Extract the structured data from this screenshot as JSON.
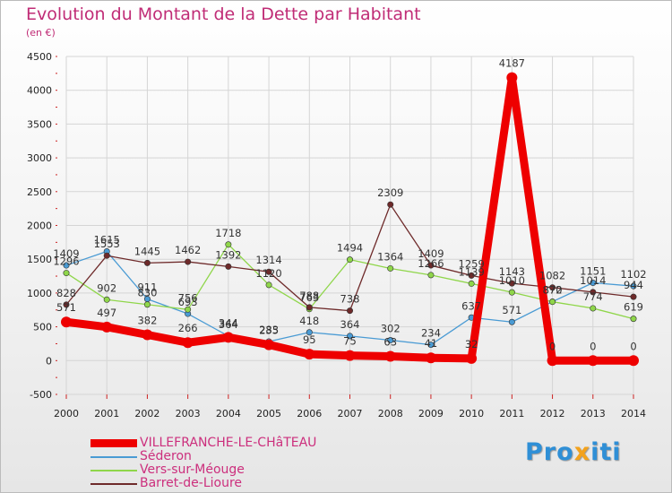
{
  "page": {
    "title": "Evolution du Montant de la Dette par Habitant",
    "unit_label": "(en €)",
    "logo_text": "Proxiti"
  },
  "colors": {
    "title": "#c02c76",
    "axis_text": "#222222",
    "grid": "#d5d5d5",
    "background_top": "#ffffff",
    "background_bottom": "#e6e6e6"
  },
  "chart_data": {
    "type": "line",
    "title": "Evolution du Montant de la Dette par Habitant",
    "subtitle": "(en €)",
    "xlabel": "",
    "ylabel": "",
    "x": [
      2000,
      2001,
      2002,
      2003,
      2004,
      2005,
      2006,
      2007,
      2008,
      2009,
      2010,
      2011,
      2012,
      2013,
      2014
    ],
    "ylim": [
      -500,
      4500
    ],
    "yticks": [
      -500,
      0,
      500,
      1000,
      1500,
      2000,
      2500,
      3000,
      3500,
      4000,
      4500
    ],
    "grid": true,
    "legend_position": "bottom-left",
    "series": [
      {
        "name": "VILLEFRANCHE-LE-CHâTEAU",
        "color": "#ee0000",
        "values": [
          571,
          497,
          382,
          266,
          344,
          235,
          95,
          75,
          63,
          41,
          32,
          4187,
          0,
          0,
          0
        ],
        "labels": [
          "571",
          "497",
          "382",
          "266",
          "344",
          "235",
          "95",
          "75",
          "63",
          "41",
          "32",
          "4187",
          "0",
          "0",
          "0"
        ]
      },
      {
        "name": "Séderon",
        "color": "#4a9bd4",
        "values": [
          1409,
          1615,
          911,
          693,
          364,
          283,
          418,
          364,
          302,
          234,
          637,
          571,
          872,
          1151,
          1102
        ],
        "labels": [
          "1409",
          "1615",
          "911",
          "693",
          "364",
          "283",
          "418",
          "364",
          "302",
          "234",
          "637",
          "571",
          "872",
          "1151",
          "1102"
        ]
      },
      {
        "name": "Vers-sur-Méouge",
        "color": "#8fd64a",
        "values": [
          1296,
          902,
          830,
          756,
          1718,
          1120,
          763,
          1494,
          1364,
          1266,
          1139,
          1010,
          870,
          774,
          619
        ],
        "labels": [
          "1296",
          "902",
          "830",
          "756",
          "1718",
          "1120",
          "763",
          "1494",
          "1364",
          "1266",
          "1139",
          "1010",
          "870",
          "774",
          "619"
        ]
      },
      {
        "name": "Barret-de-Lioure",
        "color": "#6e2a2a",
        "values": [
          828,
          1553,
          1445,
          1462,
          1392,
          1314,
          788,
          738,
          2309,
          1409,
          1259,
          1143,
          1082,
          1014,
          944
        ],
        "labels": [
          "828",
          "1553",
          "1445",
          "1462",
          "1392",
          "1314",
          "788",
          "738",
          "2309",
          "1409",
          "1259",
          "1143",
          "1082",
          "1014",
          "944"
        ]
      }
    ]
  }
}
